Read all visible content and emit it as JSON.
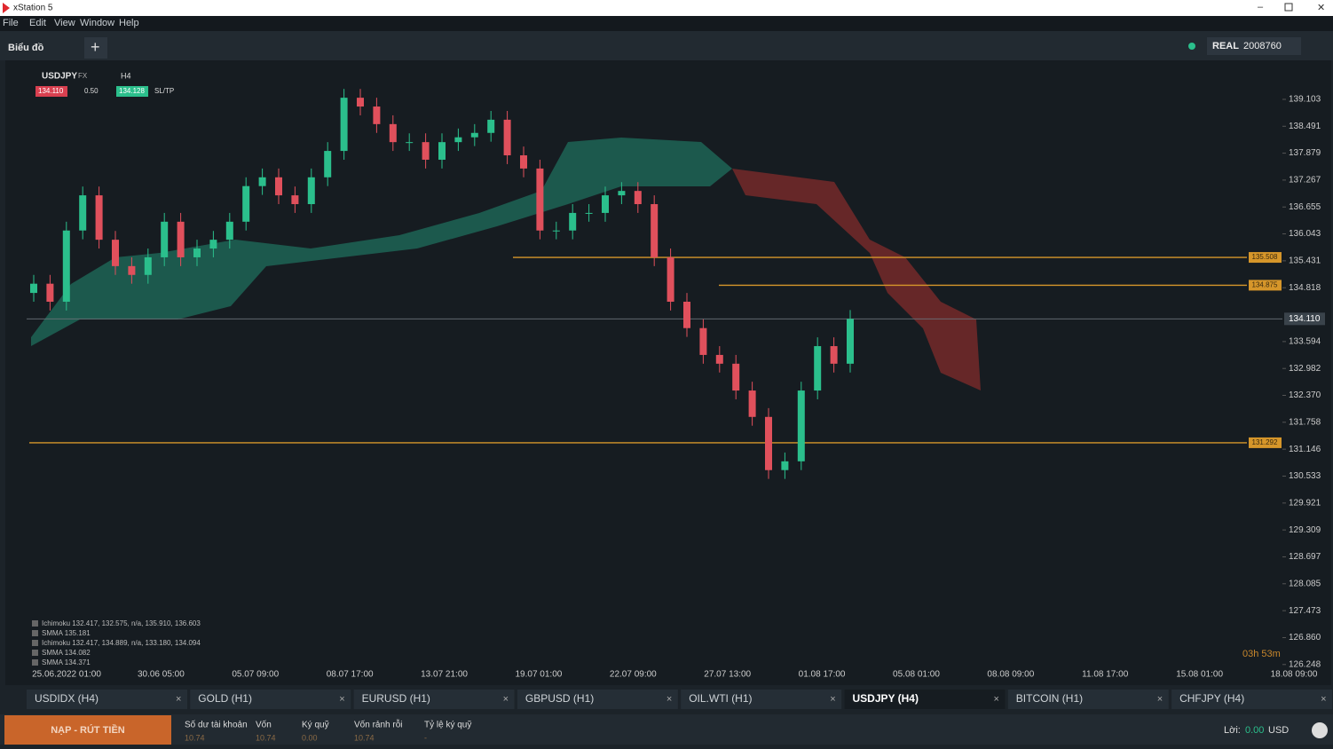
{
  "ui": {
    "window_title": "xStation 5",
    "menu": [
      "File",
      "Edit",
      "View",
      "Window",
      "Help"
    ],
    "chart_tab": "Biểu đồ",
    "account_type": "REAL",
    "account_id": "2008760",
    "symbol": "USDJPY",
    "market": "FX",
    "interval": "H4",
    "bid": "134.110",
    "volume": "0.50",
    "ask": "134.128",
    "sltp": "SL/TP",
    "countdown": "03h 53m",
    "indicators": [
      "Ichimoku 132.417, 132.575, n/a, 135.910, 136.603",
      "SMMA 135.181",
      "Ichimoku 132.417, 134.889, n/a, 133.180, 134.094",
      "SMMA 134.082",
      "SMMA 134.371"
    ],
    "tabs": [
      "USDIDX (H4)",
      "GOLD (H1)",
      "EURUSD (H1)",
      "GBPUSD (H1)",
      "OIL.WTI (H1)",
      "USDJPY (H4)",
      "BITCOIN (H1)",
      "CHFJPY (H4)"
    ],
    "deposit_button": "NẠP - RÚT TIỀN",
    "account": [
      {
        "label": "Số dư tài khoản",
        "value": "10.74"
      },
      {
        "label": "Vốn",
        "value": "10.74"
      },
      {
        "label": "Ký quỹ",
        "value": "0.00"
      },
      {
        "label": "Vốn rảnh rỗi",
        "value": "10.74"
      },
      {
        "label": "Tỷ lệ ký quỹ",
        "value": "-"
      }
    ],
    "profit_label": "Lời:",
    "profit_value": "0.00",
    "currency": "USD"
  },
  "chart_data": {
    "type": "candlestick",
    "categories": [
      "25.06.2022 01:00",
      "30.06 05:00",
      "05.07 09:00",
      "08.07 17:00",
      "13.07 21:00",
      "19.07 01:00",
      "22.07 09:00",
      "27.07 13:00",
      "01.08 17:00",
      "05.08 01:00",
      "08.08 09:00",
      "11.08 17:00",
      "15.08 01:00",
      "18.08 09:00"
    ],
    "open": [
      134.7,
      134.91,
      134.5,
      136.12,
      136.92,
      135.91,
      135.31,
      135.11,
      135.51,
      136.32,
      135.51,
      135.71,
      135.91,
      136.32,
      137.13,
      137.33,
      136.92,
      136.72,
      137.33,
      137.93,
      139.14,
      138.94,
      138.54,
      138.13,
      138.13,
      137.73,
      138.13,
      138.24,
      138.34,
      138.64,
      137.83,
      137.53,
      136.12,
      136.12,
      136.52,
      136.52,
      136.92,
      137.02,
      136.72,
      135.51,
      134.5,
      133.9,
      133.29,
      133.09,
      132.48,
      131.88,
      130.67,
      130.87,
      132.48,
      133.49,
      133.09
    ],
    "high": [
      135.11,
      135.11,
      136.32,
      137.12,
      137.12,
      136.11,
      135.51,
      135.71,
      136.52,
      136.52,
      135.91,
      136.11,
      136.52,
      137.33,
      137.53,
      137.53,
      137.12,
      137.53,
      138.13,
      139.34,
      139.34,
      139.14,
      138.74,
      138.33,
      138.33,
      138.33,
      138.44,
      138.54,
      138.84,
      138.84,
      138.03,
      137.73,
      136.32,
      136.72,
      136.72,
      137.12,
      137.22,
      137.22,
      136.92,
      135.71,
      134.7,
      134.1,
      133.49,
      133.29,
      132.68,
      132.08,
      131.07,
      132.68,
      133.69,
      133.69,
      134.31
    ],
    "low": [
      134.5,
      134.3,
      134.3,
      135.92,
      135.71,
      135.11,
      134.91,
      134.91,
      135.31,
      135.31,
      135.31,
      135.51,
      135.71,
      136.12,
      136.93,
      136.72,
      136.52,
      136.52,
      137.13,
      137.73,
      138.74,
      138.34,
      137.93,
      137.93,
      137.53,
      137.53,
      137.93,
      138.04,
      138.14,
      137.63,
      137.33,
      135.92,
      135.92,
      135.92,
      136.32,
      136.32,
      136.72,
      136.52,
      135.31,
      134.3,
      133.7,
      133.09,
      132.89,
      132.28,
      131.68,
      130.47,
      130.47,
      130.67,
      132.28,
      132.89,
      132.89
    ],
    "close": [
      134.91,
      134.5,
      136.12,
      136.92,
      135.91,
      135.31,
      135.11,
      135.51,
      136.32,
      135.51,
      135.71,
      135.91,
      136.32,
      137.13,
      137.33,
      136.92,
      136.72,
      137.33,
      137.93,
      139.14,
      138.94,
      138.54,
      138.13,
      138.13,
      137.73,
      138.13,
      138.24,
      138.34,
      138.64,
      137.83,
      137.53,
      136.12,
      136.12,
      136.52,
      136.52,
      136.92,
      137.02,
      136.72,
      135.51,
      134.5,
      133.9,
      133.29,
      133.09,
      132.48,
      131.88,
      130.67,
      130.87,
      132.48,
      133.49,
      133.09,
      134.11
    ],
    "up_color": "#2bbf8c",
    "down_color": "#e0505c",
    "ylim": [
      125.82,
      139.95
    ],
    "yticks": [
      139.103,
      138.491,
      137.879,
      137.267,
      136.655,
      136.043,
      135.431,
      134.818,
      133.594,
      132.982,
      {
        "value": 132.37,
        "label": "132.370"
      },
      131.758,
      131.146,
      130.533,
      129.921,
      129.309,
      128.697,
      128.085,
      127.473,
      {
        "value": 126.86,
        "label": "126.860"
      },
      126.248
    ],
    "levels": [
      135.508,
      134.875,
      131.292
    ],
    "level_color": "#d6962a",
    "current_price": {
      "value": 134.11,
      "label": "134.110"
    }
  }
}
